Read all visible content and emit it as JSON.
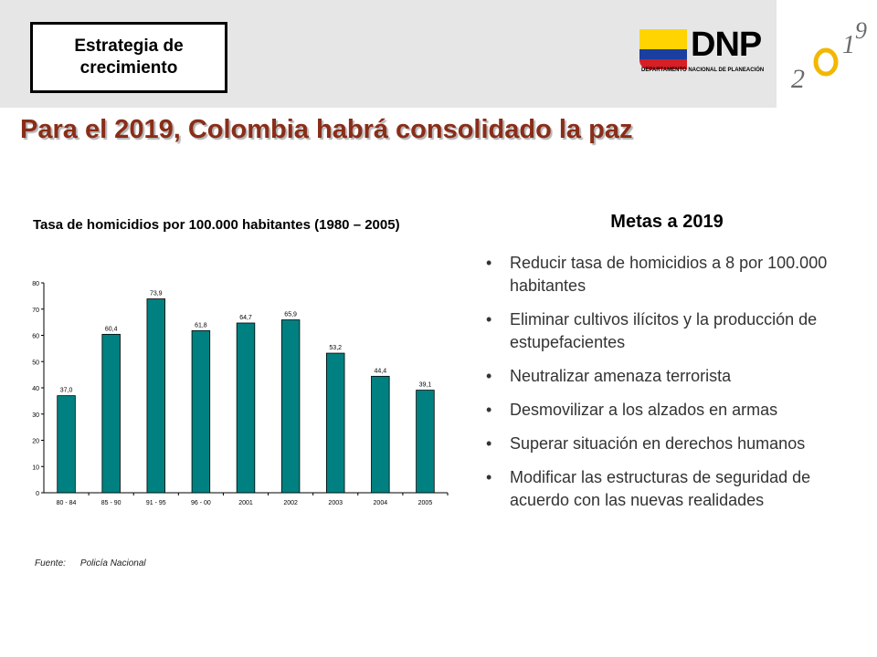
{
  "header": {
    "strategy_label": "Estrategia de crecimiento",
    "logo_text": "DNP",
    "logo_subtext": "DEPARTAMENTO NACIONAL DE PLANEACIÓN",
    "year_logo_digits": [
      "2",
      "0",
      "1",
      "9"
    ]
  },
  "title": "Para el 2019, Colombia habrá consolidado la paz",
  "chart_data": {
    "type": "bar",
    "title": "Tasa de homicidios por 100.000 habitantes (1980 – 2005)",
    "categories": [
      "80 - 84",
      "85 - 90",
      "91 - 95",
      "96 - 00",
      "2001",
      "2002",
      "2003",
      "2004",
      "2005"
    ],
    "values": [
      37.0,
      60.4,
      73.9,
      61.8,
      64.7,
      65.9,
      53.2,
      44.4,
      39.1
    ],
    "value_labels": [
      "37,0",
      "60,4",
      "73,9",
      "61,8",
      "64,7",
      "65,9",
      "53,2",
      "44,4",
      "39,1"
    ],
    "ylim": [
      0,
      80
    ],
    "yticks": [
      0,
      10,
      20,
      30,
      40,
      50,
      60,
      70,
      80
    ],
    "bar_color": "#008080",
    "grid": false,
    "legend": "none"
  },
  "source": {
    "label": "Fuente:",
    "value": "Policía Nacional"
  },
  "goals": {
    "heading": "Metas a 2019",
    "items": [
      "Reducir tasa de homicidios a 8 por 100.000 habitantes",
      "Eliminar cultivos ilícitos y la producción de estupefacientes",
      "Neutralizar amenaza terrorista",
      "Desmovilizar a los alzados en armas",
      "Superar situación en derechos humanos",
      "Modificar las estructuras de seguridad de acuerdo con las nuevas realidades"
    ]
  },
  "colors": {
    "title": "#8a2d18",
    "bar": "#008080",
    "header_band": "#e6e6e6"
  }
}
